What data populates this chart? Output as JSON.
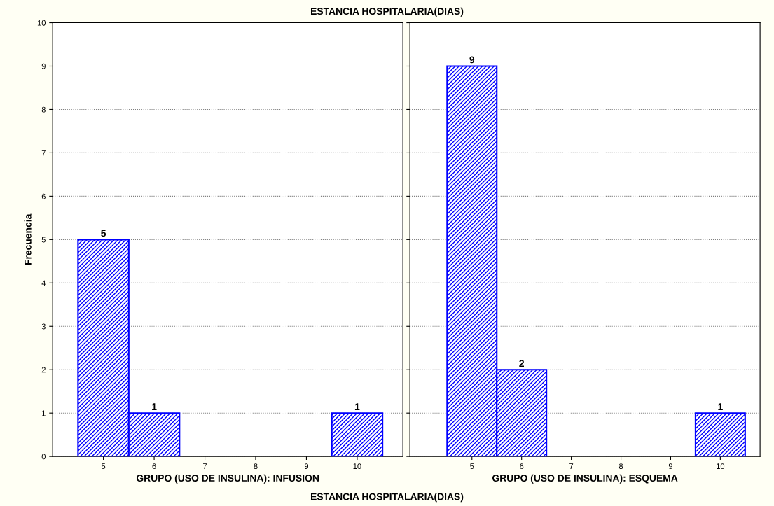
{
  "chart_data": [
    {
      "type": "histogram",
      "title": "ESTANCIA HOSPITALARIA(DIAS)",
      "xlabel": "GRUPO (USO DE INSULINA): INFUSION",
      "ylabel": "Frecuencia",
      "bins": [
        4.5,
        5.5,
        6.5,
        7.5,
        8.5,
        9.5,
        10.5
      ],
      "values": [
        5,
        1,
        0,
        0,
        0,
        1
      ],
      "color": "#0000ff",
      "xlim": [
        4,
        10.9
      ],
      "xticks": [
        5,
        6,
        7,
        8,
        9,
        10
      ],
      "ylim": [
        0,
        10
      ],
      "yticks": [
        0,
        1,
        2,
        3,
        4,
        5,
        6,
        7,
        8,
        9,
        10
      ],
      "grid": "y",
      "value_labels": [
        "5",
        "1",
        null,
        null,
        null,
        "1"
      ]
    },
    {
      "type": "histogram",
      "xlabel": "GRUPO (USO DE INSULINA): ESQUEMA",
      "annotations": [
        "ESTANCIA HOSPITALARIA(DIAS)"
      ],
      "bins": [
        4.5,
        5.5,
        6.5,
        7.5,
        8.5,
        9.5,
        10.5
      ],
      "values": [
        9,
        2,
        0,
        0,
        0,
        1
      ],
      "color": "#0000ff",
      "xlim": [
        3.75,
        10.8
      ],
      "xticks": [
        5,
        6,
        7,
        8,
        9,
        10
      ],
      "ylim": [
        0,
        10
      ],
      "yticks": [
        0,
        1,
        2,
        3,
        4,
        5,
        6,
        7,
        8,
        9,
        10
      ],
      "grid": "y",
      "tick_labels": "x",
      "value_labels": [
        "9",
        "2",
        null,
        null,
        null,
        "1"
      ]
    }
  ]
}
